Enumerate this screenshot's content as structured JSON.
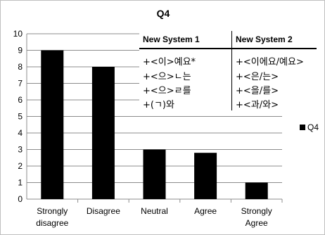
{
  "chart_data": {
    "type": "bar",
    "title": "Q4",
    "categories": [
      "Strongly disagree",
      "Disagree",
      "Neutral",
      "Agree",
      "Strongly Agree"
    ],
    "category_lines": [
      [
        "Strongly",
        "disagree"
      ],
      [
        "Disagree"
      ],
      [
        "Neutral"
      ],
      [
        "Agree"
      ],
      [
        "Strongly",
        "Agree"
      ]
    ],
    "series": [
      {
        "name": "Q4",
        "values": [
          9,
          8,
          3,
          2.8,
          1
        ],
        "color": "#000000"
      }
    ],
    "ylim": [
      0,
      10
    ],
    "yticks": [
      "0",
      "1",
      "2",
      "3",
      "4",
      "5",
      "6",
      "7",
      "8",
      "9",
      "10"
    ],
    "grid": true,
    "legend_position": "right"
  },
  "overlay_table": {
    "headers": [
      "New System 1",
      "New System 2"
    ],
    "rows": [
      [
        "+<이>예요*",
        "+<이에요/예요>"
      ],
      [
        "+<으>ㄴ는",
        "+<은/는>"
      ],
      [
        "+<으>ㄹ를",
        "+<을/를>"
      ],
      [
        "+(ㄱ)와",
        "+<과/와>"
      ]
    ]
  }
}
